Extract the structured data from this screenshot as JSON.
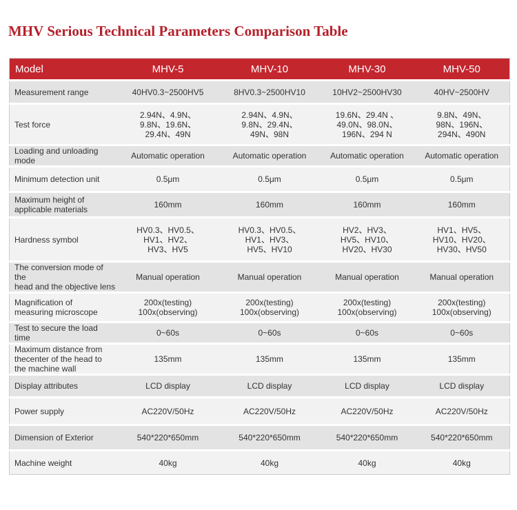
{
  "header": {
    "title": "MHV Serious Technical Parameters Comparison Table"
  },
  "table": {
    "columns": [
      "Model",
      "MHV-5",
      "MHV-10",
      "MHV-30",
      "MHV-50"
    ],
    "rows": [
      [
        [
          "Measurement range"
        ],
        [
          "40HV0.3~2500HV5"
        ],
        [
          "8HV0.3~2500HV10"
        ],
        [
          "10HV2~2500HV30"
        ],
        [
          "40HV~2500HV"
        ]
      ],
      [
        [
          "Test force"
        ],
        [
          "2.94N、4.9N、",
          "9.8N、19.6N、",
          "29.4N、49N"
        ],
        [
          "2.94N、4.9N、",
          "9.8N、29.4N、",
          "49N、98N"
        ],
        [
          "19.6N、29.4N 、",
          "49.0N、98.0N、",
          "196N、294 N"
        ],
        [
          "9.8N、49N、",
          "98N、196N、",
          "294N、490N"
        ]
      ],
      [
        [
          "Loading and unloading mode"
        ],
        [
          "Automatic operation"
        ],
        [
          "Automatic operation"
        ],
        [
          "Automatic operation"
        ],
        [
          "Automatic operation"
        ]
      ],
      [
        [
          "Minimum detection unit"
        ],
        [
          "0.5μm"
        ],
        [
          "0.5μm"
        ],
        [
          "0.5μm"
        ],
        [
          "0.5μm"
        ]
      ],
      [
        [
          "Maximum height of",
          "applicable materials"
        ],
        [
          "160mm"
        ],
        [
          "160mm"
        ],
        [
          "160mm"
        ],
        [
          "160mm"
        ]
      ],
      [
        [
          "Hardness symbol"
        ],
        [
          "HV0.3、HV0.5、",
          "HV1、HV2、",
          "HV3、HV5"
        ],
        [
          "HV0.3、HV0.5、",
          "HV1、HV3、",
          "HV5、HV10"
        ],
        [
          "HV2、HV3、",
          "HV5、HV10、",
          "HV20、HV30"
        ],
        [
          "HV1、HV5、",
          "HV10、HV20、",
          "HV30、HV50"
        ]
      ],
      [
        [
          "The conversion mode of the",
          "head and the objective lens"
        ],
        [
          "Manual operation"
        ],
        [
          "Manual operation"
        ],
        [
          "Manual operation"
        ],
        [
          "Manual operation"
        ]
      ],
      [
        [
          "Magnification of",
          "measuring microscope"
        ],
        [
          "200x(testing)",
          "100x(observing)"
        ],
        [
          "200x(testing)",
          "100x(observing)"
        ],
        [
          "200x(testing)",
          "100x(observing)"
        ],
        [
          "200x(testing)",
          "100x(observing)"
        ]
      ],
      [
        [
          "Test to secure the load time"
        ],
        [
          "0~60s"
        ],
        [
          "0~60s"
        ],
        [
          "0~60s"
        ],
        [
          "0~60s"
        ]
      ],
      [
        [
          "Maximum distance from",
          "thecenter of the head to",
          "the machine wall"
        ],
        [
          "135mm"
        ],
        [
          "135mm"
        ],
        [
          "135mm"
        ],
        [
          "135mm"
        ]
      ],
      [
        [
          "Display attributes"
        ],
        [
          "LCD display"
        ],
        [
          "LCD display"
        ],
        [
          "LCD display"
        ],
        [
          "LCD display"
        ]
      ],
      [
        [
          "Power supply"
        ],
        [
          "AC220V/50Hz"
        ],
        [
          "AC220V/50Hz"
        ],
        [
          "AC220V/50Hz"
        ],
        [
          "AC220V/50Hz"
        ]
      ],
      [
        [
          "Dimension of Exterior"
        ],
        [
          "540*220*650mm"
        ],
        [
          "540*220*650mm"
        ],
        [
          "540*220*650mm"
        ],
        [
          "540*220*650mm"
        ]
      ],
      [
        [
          "Machine weight"
        ],
        [
          "40kg"
        ],
        [
          "40kg"
        ],
        [
          "40kg"
        ],
        [
          "40kg"
        ]
      ]
    ]
  }
}
